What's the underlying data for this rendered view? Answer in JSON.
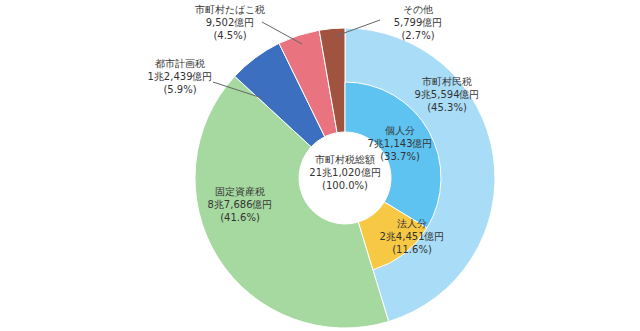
{
  "chart_data": {
    "type": "pie",
    "center_label": {
      "title": "市町村税総額",
      "value": 211020,
      "value_label": "21兆1,020億円",
      "percent": 100.0,
      "percent_label": "(100.0%)"
    },
    "outer": {
      "categories": [
        "市町村民税",
        "固定資産税",
        "都市計画税",
        "市町村たばこ税",
        "その他"
      ],
      "values": [
        95594,
        87686,
        12439,
        9502,
        5799
      ],
      "value_labels": [
        "9兆5,594億円",
        "8兆7,686億円",
        "1兆2,439億円",
        "9,502億円",
        "5,799億円"
      ],
      "percents": [
        45.3,
        41.6,
        5.9,
        4.5,
        2.7
      ],
      "percent_labels": [
        "(45.3%)",
        "(41.6%)",
        "(5.9%)",
        "(4.5%)",
        "(2.7%)"
      ],
      "colors": [
        "#a9dcf6",
        "#a6d9a0",
        "#3d6fc0",
        "#e9737f",
        "#a0533f"
      ]
    },
    "inner": {
      "parent": "市町村民税",
      "categories": [
        "個人分",
        "法人分"
      ],
      "values": [
        71143,
        24451
      ],
      "value_labels": [
        "7兆1,143億円",
        "2兆4,451億円"
      ],
      "percents": [
        33.7,
        11.6
      ],
      "percent_labels": [
        "(33.7%)",
        "(11.6%)"
      ],
      "colors": [
        "#5ec3f0",
        "#f6c844"
      ]
    }
  }
}
